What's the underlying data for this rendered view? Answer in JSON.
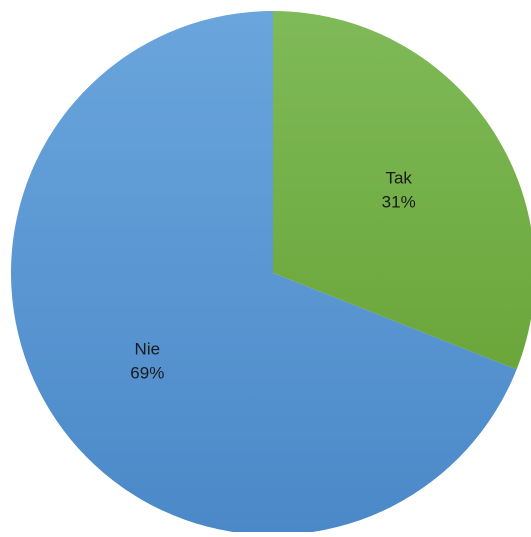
{
  "chart_data": {
    "type": "pie",
    "slices": [
      {
        "label": "Tak",
        "value": 31,
        "value_label": "31%",
        "color": "#74b045"
      },
      {
        "label": "Nie",
        "value": 69,
        "value_label": "69%",
        "color": "#5b9bd5"
      }
    ],
    "start_angle_deg": 0,
    "direction": "clockwise",
    "legend": "none"
  }
}
